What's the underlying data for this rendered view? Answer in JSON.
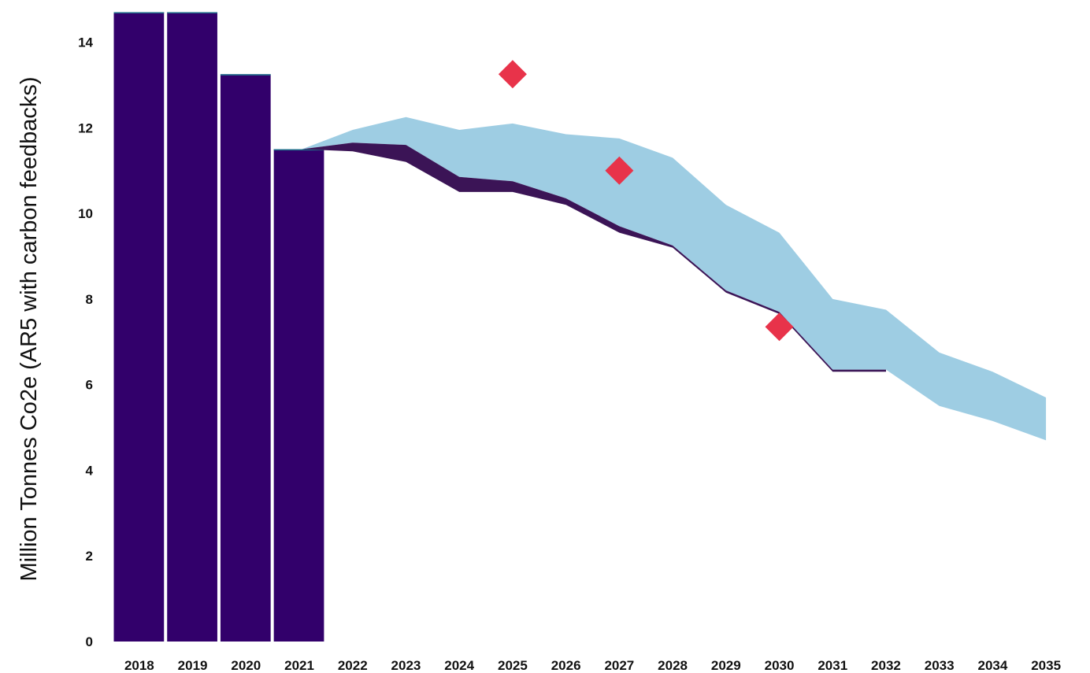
{
  "chart_data": {
    "type": "bar",
    "title": "",
    "xlabel": "",
    "ylabel": "Million Tonnes Co2e (AR5 with carbon feedbacks)",
    "ylim": [
      0,
      14.8
    ],
    "yticks": [
      0,
      2,
      4,
      6,
      8,
      10,
      12,
      14
    ],
    "grid": false,
    "legend": "none",
    "categories": [
      "2018",
      "2019",
      "2020",
      "2021",
      "2022",
      "2023",
      "2024",
      "2025",
      "2026",
      "2027",
      "2028",
      "2029",
      "2030",
      "2031",
      "2032",
      "2033",
      "2034",
      "2035"
    ],
    "bars": {
      "categories": [
        "2018",
        "2019",
        "2020",
        "2021"
      ],
      "values": [
        14.7,
        14.7,
        13.25,
        11.5
      ],
      "color": "#32006b"
    },
    "bands": [
      {
        "color": "#9ecde3",
        "x": [
          "2021",
          "2022",
          "2023",
          "2024",
          "2025",
          "2026",
          "2027",
          "2028",
          "2029",
          "2030",
          "2031",
          "2032",
          "2033",
          "2034",
          "2035"
        ],
        "lower": [
          11.5,
          11.65,
          11.6,
          10.85,
          10.75,
          10.35,
          9.7,
          9.25,
          8.2,
          7.7,
          6.35,
          6.35,
          5.5,
          5.15,
          4.7
        ],
        "upper": [
          11.5,
          11.95,
          12.25,
          11.95,
          12.1,
          11.85,
          11.75,
          11.3,
          10.2,
          9.55,
          8.0,
          7.75,
          6.75,
          6.3,
          5.7
        ]
      },
      {
        "color": "#3b1456",
        "x": [
          "2021",
          "2022",
          "2023",
          "2024",
          "2025",
          "2026",
          "2027",
          "2028",
          "2029",
          "2030",
          "2031",
          "2032"
        ],
        "lower": [
          11.5,
          11.45,
          11.2,
          10.5,
          10.5,
          10.2,
          9.55,
          9.2,
          8.15,
          7.65,
          6.3,
          6.3
        ],
        "upper": [
          11.5,
          11.65,
          11.6,
          10.85,
          10.75,
          10.35,
          9.7,
          9.25,
          8.2,
          7.7,
          6.35,
          6.35
        ]
      }
    ],
    "markers": {
      "shape": "diamond",
      "color": "#e8334a",
      "x": [
        "2025",
        "2027",
        "2030"
      ],
      "values": [
        13.25,
        11.0,
        7.35
      ]
    }
  }
}
